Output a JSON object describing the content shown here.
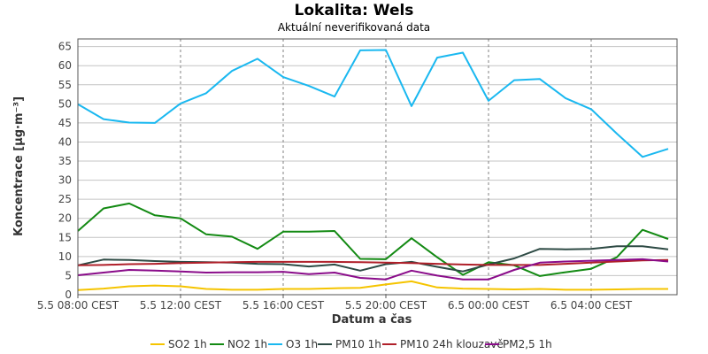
{
  "chart_data": {
    "type": "line",
    "title": "Lokalita: Wels",
    "subtitle": "Aktuální neverifikovaná data",
    "xlabel": "Datum a čas",
    "ylabel": "Koncentrace [µg·m⁻³]",
    "ylim": [
      0,
      67
    ],
    "yticks": [
      0,
      5,
      10,
      15,
      20,
      25,
      30,
      35,
      40,
      45,
      50,
      55,
      60,
      65
    ],
    "x_ticks": [
      {
        "index": 0,
        "label": "5.5 08:00 CEST"
      },
      {
        "index": 4,
        "label": "5.5 12:00 CEST"
      },
      {
        "index": 8,
        "label": "5.5 16:00 CEST"
      },
      {
        "index": 12,
        "label": "5.5 20:00 CEST"
      },
      {
        "index": 16,
        "label": "6.5 00:00 CEST"
      },
      {
        "index": 20,
        "label": "6.5 04:00 CEST"
      }
    ],
    "x": [
      "5.5 08:00",
      "5.5 09:00",
      "5.5 10:00",
      "5.5 11:00",
      "5.5 12:00",
      "5.5 13:00",
      "5.5 14:00",
      "5.5 15:00",
      "5.5 16:00",
      "5.5 17:00",
      "5.5 18:00",
      "5.5 19:00",
      "5.5 20:00",
      "5.5 21:00",
      "5.5 22:00",
      "5.5 23:00",
      "6.5 00:00",
      "6.5 01:00",
      "6.5 02:00",
      "6.5 03:00",
      "6.5 04:00",
      "6.5 05:00",
      "6.5 06:00",
      "6.5 07:00"
    ],
    "series": [
      {
        "name": "SO2 1h",
        "color": "#f5c400",
        "values": [
          1.2,
          1.6,
          2.2,
          2.4,
          2.2,
          1.5,
          1.3,
          1.3,
          1.5,
          1.5,
          1.7,
          1.8,
          2.7,
          3.5,
          1.9,
          1.6,
          1.5,
          1.4,
          1.5,
          1.3,
          1.3,
          1.4,
          1.5,
          1.5
        ]
      },
      {
        "name": "NO2 1h",
        "color": "#138a13",
        "values": [
          16.7,
          22.6,
          23.9,
          20.8,
          20.0,
          15.8,
          15.2,
          12.0,
          16.5,
          16.5,
          16.7,
          9.4,
          9.3,
          14.8,
          9.8,
          5.2,
          8.5,
          7.7,
          4.9,
          5.9,
          6.8,
          9.8,
          17.0,
          14.6
        ]
      },
      {
        "name": "O3 1h",
        "color": "#1ab8f0",
        "values": [
          49.9,
          46.0,
          45.1,
          45.0,
          50.1,
          52.8,
          58.6,
          61.8,
          57.0,
          54.7,
          51.9,
          64.0,
          64.1,
          49.4,
          62.1,
          63.4,
          50.8,
          56.2,
          56.5,
          51.5,
          48.6,
          42.2,
          36.1,
          38.2
        ]
      },
      {
        "name": "PM10 1h",
        "color": "#2d4a44",
        "values": [
          7.7,
          9.2,
          9.1,
          8.8,
          8.6,
          8.5,
          8.4,
          8.1,
          8.0,
          7.4,
          7.9,
          6.3,
          8.0,
          8.6,
          7.3,
          6.1,
          7.9,
          9.5,
          12.0,
          11.9,
          12.0,
          12.7,
          12.7,
          11.9
        ]
      },
      {
        "name": "PM10 24h klouzavě",
        "color": "#b0202a",
        "values": [
          7.7,
          7.8,
          8.0,
          8.1,
          8.3,
          8.4,
          8.5,
          8.6,
          8.6,
          8.6,
          8.6,
          8.5,
          8.4,
          8.3,
          8.1,
          7.9,
          7.8,
          7.8,
          7.8,
          8.1,
          8.4,
          8.7,
          9.0,
          9.1
        ]
      },
      {
        "name": "PM2,5 1h",
        "color": "#8a0c8a",
        "values": [
          5.1,
          5.8,
          6.5,
          6.3,
          6.1,
          5.8,
          5.9,
          5.9,
          6.0,
          5.4,
          5.8,
          4.4,
          4.0,
          6.3,
          5.0,
          4.0,
          4.0,
          6.5,
          8.4,
          8.7,
          8.9,
          9.1,
          9.3,
          8.7
        ]
      }
    ],
    "grid": true,
    "legend_position": "bottom"
  }
}
